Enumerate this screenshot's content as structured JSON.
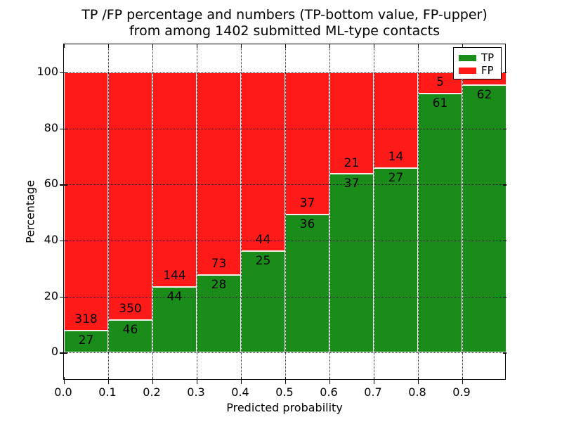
{
  "figure": {
    "title_line1": "TP /FP percentage and numbers (TP-bottom value, FP-upper)",
    "title_line2": "from among 1402 submitted ML-type contacts",
    "xlabel": "Predicted probability",
    "ylabel": "Percentage"
  },
  "legend": {
    "items": [
      {
        "label": "TP",
        "color": "#1A8C1A"
      },
      {
        "label": "FP",
        "color": "#FF1A1A"
      }
    ]
  },
  "axes": {
    "yticks": [
      {
        "label": "0",
        "value": 0
      },
      {
        "label": "20",
        "value": 20
      },
      {
        "label": "40",
        "value": 40
      },
      {
        "label": "60",
        "value": 60
      },
      {
        "label": "80",
        "value": 80
      },
      {
        "label": "100",
        "value": 100
      }
    ],
    "xticks": [
      {
        "label": "0.0",
        "value": 0.0
      },
      {
        "label": "0.1",
        "value": 0.1
      },
      {
        "label": "0.2",
        "value": 0.2
      },
      {
        "label": "0.3",
        "value": 0.3
      },
      {
        "label": "0.4",
        "value": 0.4
      },
      {
        "label": "0.5",
        "value": 0.5
      },
      {
        "label": "0.6",
        "value": 0.6
      },
      {
        "label": "0.7",
        "value": 0.7
      },
      {
        "label": "0.8",
        "value": 0.8
      },
      {
        "label": "0.9",
        "value": 0.9
      }
    ]
  },
  "chart_data": {
    "type": "bar",
    "stacked": true,
    "normalized": "each bin stacked to 100%",
    "title": "TP /FP percentage and numbers (TP-bottom value, FP-upper) from among 1402 submitted ML-type contacts",
    "xlabel": "Predicted probability",
    "ylabel": "Percentage",
    "xlim": [
      0.0,
      1.0
    ],
    "ylim": [
      -10,
      110
    ],
    "grid": true,
    "legend_position": "upper right",
    "total_contacts": 1402,
    "series": [
      {
        "name": "TP",
        "color": "#1A8C1A"
      },
      {
        "name": "FP",
        "color": "#FF1A1A"
      }
    ],
    "bins": [
      {
        "range": "0.0-0.1",
        "tp": 27,
        "fp": 318,
        "tp_percent": 7.83
      },
      {
        "range": "0.1-0.2",
        "tp": 46,
        "fp": 350,
        "tp_percent": 11.62
      },
      {
        "range": "0.2-0.3",
        "tp": 44,
        "fp": 144,
        "tp_percent": 23.4
      },
      {
        "range": "0.3-0.4",
        "tp": 28,
        "fp": 73,
        "tp_percent": 27.72
      },
      {
        "range": "0.4-0.5",
        "tp": 25,
        "fp": 44,
        "tp_percent": 36.23
      },
      {
        "range": "0.5-0.6",
        "tp": 36,
        "fp": 37,
        "tp_percent": 49.32
      },
      {
        "range": "0.6-0.7",
        "tp": 37,
        "fp": 21,
        "tp_percent": 63.79
      },
      {
        "range": "0.7-0.8",
        "tp": 27,
        "fp": 14,
        "tp_percent": 65.85
      },
      {
        "range": "0.8-0.9",
        "tp": 61,
        "fp": 5,
        "tp_percent": 92.42
      },
      {
        "range": "0.9-1.0",
        "tp": 62,
        "fp": null,
        "tp_percent": 95.4,
        "fp_label_hidden_by_legend": true
      }
    ]
  }
}
